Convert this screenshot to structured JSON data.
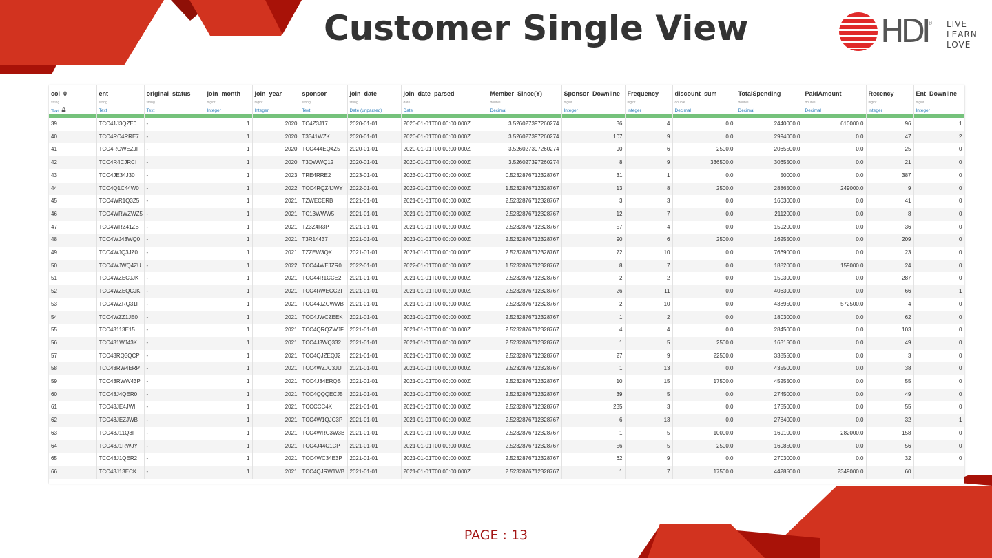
{
  "title": "Customer Single View",
  "logo": {
    "brand": "HDI",
    "registered": "®",
    "taglines": [
      "LIVE",
      "LEARN",
      "LOVE"
    ]
  },
  "page_label": "PAGE : 13",
  "colors": {
    "accent_red": "#d2331f",
    "dark_red": "#a81208",
    "text_dark": "#333333",
    "bar_green": "#75c27b",
    "meaning_blue": "#2b7bb9"
  },
  "columns": [
    {
      "name": "col_0",
      "type": "string",
      "meaning": "Text",
      "locked": true
    },
    {
      "name": "ent",
      "type": "string",
      "meaning": "Text"
    },
    {
      "name": "original_status",
      "type": "string",
      "meaning": "Text"
    },
    {
      "name": "join_month",
      "type": "bigint",
      "meaning": "Integer"
    },
    {
      "name": "join_year",
      "type": "bigint",
      "meaning": "Integer"
    },
    {
      "name": "sponsor",
      "type": "string",
      "meaning": "Text"
    },
    {
      "name": "join_date",
      "type": "string",
      "meaning": "Date (unparsed)"
    },
    {
      "name": "join_date_parsed",
      "type": "date",
      "meaning": "Date"
    },
    {
      "name": "Member_Since(Y)",
      "type": "double",
      "meaning": "Decimal"
    },
    {
      "name": "Sponsor_Downline",
      "type": "bigint",
      "meaning": "Integer"
    },
    {
      "name": "Frequency",
      "type": "bigint",
      "meaning": "Integer"
    },
    {
      "name": "discount_sum",
      "type": "double",
      "meaning": "Decimal"
    },
    {
      "name": "TotalSpending",
      "type": "double",
      "meaning": "Decimal"
    },
    {
      "name": "PaidAmount",
      "type": "double",
      "meaning": "Decimal"
    },
    {
      "name": "Recency",
      "type": "bigint",
      "meaning": "Integer"
    },
    {
      "name": "Ent_Downline",
      "type": "bigint",
      "meaning": "Integer"
    }
  ],
  "rows": [
    [
      "39",
      "TCC41J3QZE0",
      "-",
      "1",
      "2020",
      "TC4Z3J17",
      "2020-01-01",
      "2020-01-01T00:00:00.000Z",
      "3.526027397260274",
      "36",
      "4",
      "0.0",
      "2440000.0",
      "610000.0",
      "96",
      "1"
    ],
    [
      "40",
      "TCC4RC4RRE7",
      "-",
      "1",
      "2020",
      "T3341WZK",
      "2020-01-01",
      "2020-01-01T00:00:00.000Z",
      "3.526027397260274",
      "107",
      "9",
      "0.0",
      "2994000.0",
      "0.0",
      "47",
      "2"
    ],
    [
      "41",
      "TCC4RCWEZJI",
      "-",
      "1",
      "2020",
      "TCC444EQ4Z5",
      "2020-01-01",
      "2020-01-01T00:00:00.000Z",
      "3.526027397260274",
      "90",
      "6",
      "2500.0",
      "2065500.0",
      "0.0",
      "25",
      "0"
    ],
    [
      "42",
      "TCC4R4CJRCI",
      "-",
      "1",
      "2020",
      "T3QWWQ12",
      "2020-01-01",
      "2020-01-01T00:00:00.000Z",
      "3.526027397260274",
      "8",
      "9",
      "336500.0",
      "3065500.0",
      "0.0",
      "21",
      "0"
    ],
    [
      "43",
      "TCC4JE34J30",
      "-",
      "1",
      "2023",
      "TRE4RRE2",
      "2023-01-01",
      "2023-01-01T00:00:00.000Z",
      "0.5232876712328767",
      "31",
      "1",
      "0.0",
      "50000.0",
      "0.0",
      "387",
      "0"
    ],
    [
      "44",
      "TCC4Q1C44W0",
      "-",
      "1",
      "2022",
      "TCC4RQZ4JWY",
      "2022-01-01",
      "2022-01-01T00:00:00.000Z",
      "1.5232876712328767",
      "13",
      "8",
      "2500.0",
      "2886500.0",
      "249000.0",
      "9",
      "0"
    ],
    [
      "45",
      "TCC4WR1Q3Z5",
      "-",
      "1",
      "2021",
      "TZWECERB",
      "2021-01-01",
      "2021-01-01T00:00:00.000Z",
      "2.5232876712328767",
      "3",
      "3",
      "0.0",
      "1663000.0",
      "0.0",
      "41",
      "0"
    ],
    [
      "46",
      "TCC4WRWZWZ5",
      "-",
      "1",
      "2021",
      "TC13WWW5",
      "2021-01-01",
      "2021-01-01T00:00:00.000Z",
      "2.5232876712328767",
      "12",
      "7",
      "0.0",
      "2112000.0",
      "0.0",
      "8",
      "0"
    ],
    [
      "47",
      "TCC4WRZ41ZB",
      "-",
      "1",
      "2021",
      "TZ3Z4R3P",
      "2021-01-01",
      "2021-01-01T00:00:00.000Z",
      "2.5232876712328767",
      "57",
      "4",
      "0.0",
      "1592000.0",
      "0.0",
      "36",
      "0"
    ],
    [
      "48",
      "TCC4WJ43WQ0",
      "-",
      "1",
      "2021",
      "T3R14437",
      "2021-01-01",
      "2021-01-01T00:00:00.000Z",
      "2.5232876712328767",
      "90",
      "6",
      "2500.0",
      "1625500.0",
      "0.0",
      "209",
      "0"
    ],
    [
      "49",
      "TCC4WJQ3JZ0",
      "-",
      "1",
      "2021",
      "TZZEW3QK",
      "2021-01-01",
      "2021-01-01T00:00:00.000Z",
      "2.5232876712328767",
      "72",
      "10",
      "0.0",
      "7669000.0",
      "0.0",
      "23",
      "0"
    ],
    [
      "50",
      "TCC4WJWQ4ZU",
      "-",
      "1",
      "2022",
      "TCC44WEJZR0",
      "2022-01-01",
      "2022-01-01T00:00:00.000Z",
      "1.5232876712328767",
      "8",
      "7",
      "0.0",
      "1882000.0",
      "159000.0",
      "24",
      "0"
    ],
    [
      "51",
      "TCC4WZECJJK",
      "-",
      "1",
      "2021",
      "TCC44R1CCE2",
      "2021-01-01",
      "2021-01-01T00:00:00.000Z",
      "2.5232876712328767",
      "2",
      "2",
      "0.0",
      "1503000.0",
      "0.0",
      "287",
      "0"
    ],
    [
      "52",
      "TCC4WZEQCJK",
      "-",
      "1",
      "2021",
      "TCC4RWECCZF",
      "2021-01-01",
      "2021-01-01T00:00:00.000Z",
      "2.5232876712328767",
      "26",
      "11",
      "0.0",
      "4063000.0",
      "0.0",
      "66",
      "1"
    ],
    [
      "53",
      "TCC4WZRQ31F",
      "-",
      "1",
      "2021",
      "TCC44JZCWWB",
      "2021-01-01",
      "2021-01-01T00:00:00.000Z",
      "2.5232876712328767",
      "2",
      "10",
      "0.0",
      "4389500.0",
      "572500.0",
      "4",
      "0"
    ],
    [
      "54",
      "TCC4WZZ1JE0",
      "-",
      "1",
      "2021",
      "TCC4JWCZEEK",
      "2021-01-01",
      "2021-01-01T00:00:00.000Z",
      "2.5232876712328767",
      "1",
      "2",
      "0.0",
      "1803000.0",
      "0.0",
      "62",
      "0"
    ],
    [
      "55",
      "TCC43113E15",
      "-",
      "1",
      "2021",
      "TCC4QRQZWJF",
      "2021-01-01",
      "2021-01-01T00:00:00.000Z",
      "2.5232876712328767",
      "4",
      "4",
      "0.0",
      "2845000.0",
      "0.0",
      "103",
      "0"
    ],
    [
      "56",
      "TCC431WJ43K",
      "-",
      "1",
      "2021",
      "TCC4J3WQ332",
      "2021-01-01",
      "2021-01-01T00:00:00.000Z",
      "2.5232876712328767",
      "1",
      "5",
      "2500.0",
      "1631500.0",
      "0.0",
      "49",
      "0"
    ],
    [
      "57",
      "TCC43RQ3QCP",
      "-",
      "1",
      "2021",
      "TCC4QJZEQJ2",
      "2021-01-01",
      "2021-01-01T00:00:00.000Z",
      "2.5232876712328767",
      "27",
      "9",
      "22500.0",
      "3385500.0",
      "0.0",
      "3",
      "0"
    ],
    [
      "58",
      "TCC43RW4ERP",
      "-",
      "1",
      "2021",
      "TCC4WZJC3JU",
      "2021-01-01",
      "2021-01-01T00:00:00.000Z",
      "2.5232876712328767",
      "1",
      "13",
      "0.0",
      "4355000.0",
      "0.0",
      "38",
      "0"
    ],
    [
      "59",
      "TCC43RWW43P",
      "-",
      "1",
      "2021",
      "TCC4J34ERQB",
      "2021-01-01",
      "2021-01-01T00:00:00.000Z",
      "2.5232876712328767",
      "10",
      "15",
      "17500.0",
      "4525500.0",
      "0.0",
      "55",
      "0"
    ],
    [
      "60",
      "TCC43J4QER0",
      "-",
      "1",
      "2021",
      "TCC4QQQECJ5",
      "2021-01-01",
      "2021-01-01T00:00:00.000Z",
      "2.5232876712328767",
      "39",
      "5",
      "0.0",
      "2745000.0",
      "0.0",
      "49",
      "0"
    ],
    [
      "61",
      "TCC43JE4JWI",
      "-",
      "1",
      "2021",
      "TCCCCC4K",
      "2021-01-01",
      "2021-01-01T00:00:00.000Z",
      "2.5232876712328767",
      "235",
      "3",
      "0.0",
      "1755000.0",
      "0.0",
      "55",
      "0"
    ],
    [
      "62",
      "TCC43JEZJWB",
      "-",
      "1",
      "2021",
      "TCC4W1QJC3P",
      "2021-01-01",
      "2021-01-01T00:00:00.000Z",
      "2.5232876712328767",
      "6",
      "13",
      "0.0",
      "2784000.0",
      "0.0",
      "32",
      "1"
    ],
    [
      "63",
      "TCC43J11Q3F",
      "-",
      "1",
      "2021",
      "TCC4WRC3W3B",
      "2021-01-01",
      "2021-01-01T00:00:00.000Z",
      "2.5232876712328767",
      "1",
      "5",
      "10000.0",
      "1691000.0",
      "282000.0",
      "158",
      "0"
    ],
    [
      "64",
      "TCC43J1RWJY",
      "-",
      "1",
      "2021",
      "TCC4J44C1CP",
      "2021-01-01",
      "2021-01-01T00:00:00.000Z",
      "2.5232876712328767",
      "56",
      "5",
      "2500.0",
      "1608500.0",
      "0.0",
      "56",
      "0"
    ],
    [
      "65",
      "TCC43J1QER2",
      "-",
      "1",
      "2021",
      "TCC4WC34E3P",
      "2021-01-01",
      "2021-01-01T00:00:00.000Z",
      "2.5232876712328767",
      "62",
      "9",
      "0.0",
      "2703000.0",
      "0.0",
      "32",
      "0"
    ],
    [
      "66",
      "TCC43J13ECK",
      "-",
      "1",
      "2021",
      "TCC4QJRW1WB",
      "2021-01-01",
      "2021-01-01T00:00:00.000Z",
      "2.5232876712328767",
      "1",
      "7",
      "17500.0",
      "4428500.0",
      "2349000.0",
      "60",
      ""
    ]
  ]
}
